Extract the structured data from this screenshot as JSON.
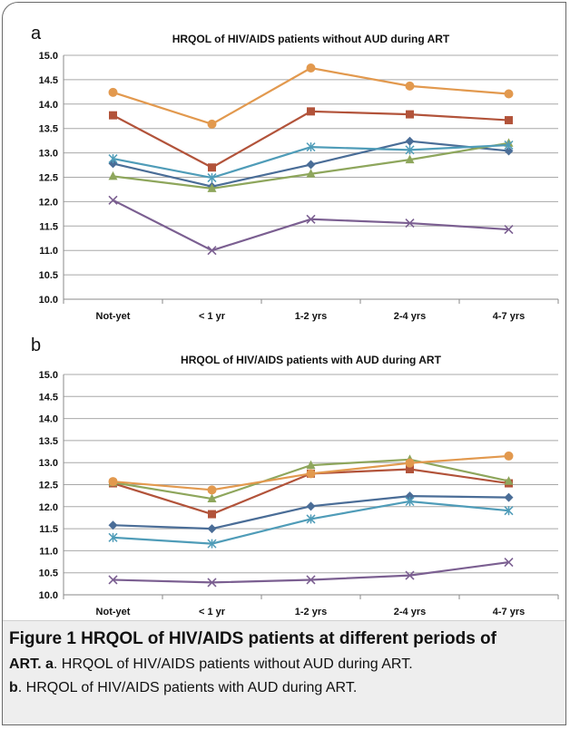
{
  "chart_data": [
    {
      "type": "line",
      "panel_label": "a",
      "title": "HRQOL of HIV/AIDS patients without AUD during ART",
      "categories": [
        "Not-yet",
        "< 1 yr",
        "1-2 yrs",
        "2-4 yrs",
        "4-7 yrs"
      ],
      "ylim": [
        10.0,
        15.0
      ],
      "yticks": [
        "10.0",
        "10.5",
        "11.0",
        "11.5",
        "12.0",
        "12.5",
        "13.0",
        "13.5",
        "14.0",
        "14.5",
        "15.0"
      ],
      "grid": true,
      "series": [
        {
          "marker": "diamond",
          "color": "#4a6d97",
          "values": [
            12.78,
            12.31,
            12.76,
            13.24,
            13.04
          ]
        },
        {
          "marker": "square",
          "color": "#b2533a",
          "values": [
            13.77,
            12.7,
            13.85,
            13.79,
            13.67
          ]
        },
        {
          "marker": "triangle",
          "color": "#8ea65c",
          "values": [
            12.52,
            12.27,
            12.57,
            12.86,
            13.2
          ]
        },
        {
          "marker": "x",
          "color": "#7b5f91",
          "values": [
            12.03,
            11.0,
            11.64,
            11.56,
            11.43
          ]
        },
        {
          "marker": "star",
          "color": "#4f9cb8",
          "values": [
            12.88,
            12.49,
            13.12,
            13.06,
            13.16
          ]
        },
        {
          "marker": "circle",
          "color": "#e2994e",
          "values": [
            14.24,
            13.59,
            14.74,
            14.37,
            14.21
          ]
        }
      ]
    },
    {
      "type": "line",
      "panel_label": "b",
      "title": "HRQOL of HIV/AIDS patients with AUD during ART",
      "categories": [
        "Not-yet",
        "< 1 yr",
        "1-2 yrs",
        "2-4 yrs",
        "4-7 yrs"
      ],
      "ylim": [
        10.0,
        15.0
      ],
      "yticks": [
        "10.0",
        "10.5",
        "11.0",
        "11.5",
        "12.0",
        "12.5",
        "13.0",
        "13.5",
        "14.0",
        "14.5",
        "15.0"
      ],
      "grid": true,
      "series": [
        {
          "marker": "diamond",
          "color": "#4a6d97",
          "values": [
            11.58,
            11.5,
            12.01,
            12.24,
            12.21
          ]
        },
        {
          "marker": "square",
          "color": "#b2533a",
          "values": [
            12.53,
            11.83,
            12.75,
            12.85,
            12.53
          ]
        },
        {
          "marker": "triangle",
          "color": "#8ea65c",
          "values": [
            12.55,
            12.18,
            12.94,
            13.07,
            12.58
          ]
        },
        {
          "marker": "x",
          "color": "#7b5f91",
          "values": [
            10.34,
            10.28,
            10.34,
            10.44,
            10.74
          ]
        },
        {
          "marker": "star",
          "color": "#4f9cb8",
          "values": [
            11.3,
            11.16,
            11.72,
            12.12,
            11.91
          ]
        },
        {
          "marker": "circle",
          "color": "#e2994e",
          "values": [
            12.57,
            12.38,
            12.75,
            12.99,
            13.15
          ]
        }
      ]
    }
  ],
  "caption": {
    "line1": "Figure 1 HRQOL of HIV/AIDS patients at different periods of",
    "line2_bold": "ART. a",
    "line2_rest": ". HRQOL of HIV/AIDS patients without AUD during ART.",
    "line3_bold": "b",
    "line3_rest": ". HRQOL of HIV/AIDS patients with AUD during ART."
  }
}
